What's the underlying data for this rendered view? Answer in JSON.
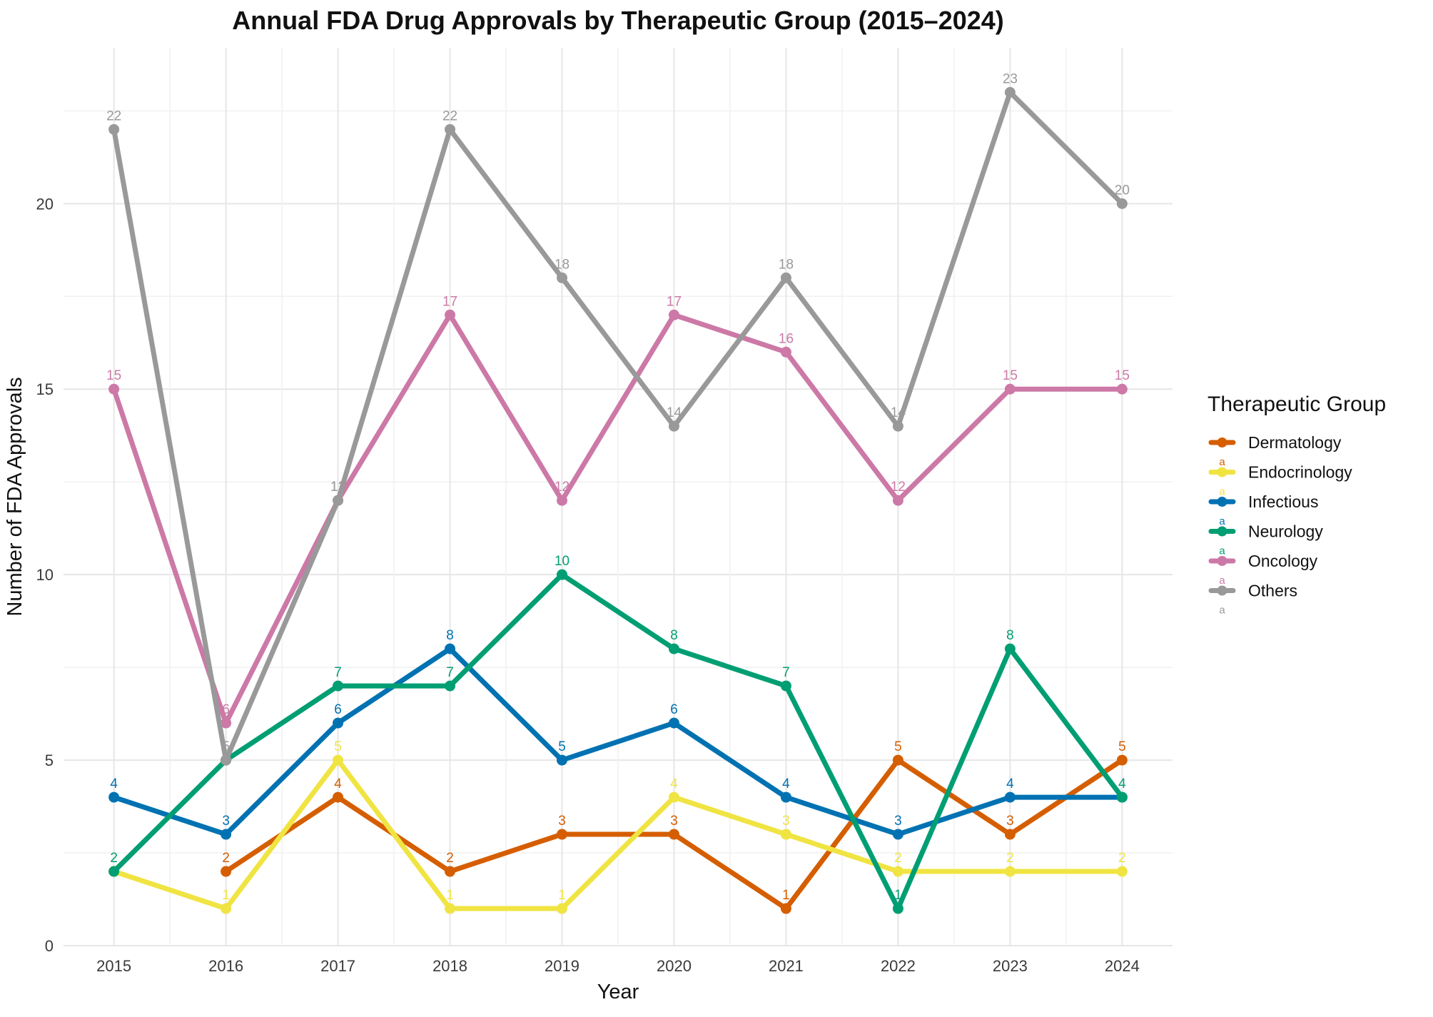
{
  "chart_data": {
    "type": "line",
    "title": "Annual FDA Drug Approvals by Therapeutic Group (2015–2024)",
    "xlabel": "Year",
    "ylabel": "Number of FDA Approvals",
    "x": [
      2015,
      2016,
      2017,
      2018,
      2019,
      2020,
      2021,
      2022,
      2023,
      2024
    ],
    "x_tick_labels": [
      "2015",
      "2016",
      "2017",
      "2018",
      "2019",
      "2020",
      "2021",
      "2022",
      "2023",
      "2024"
    ],
    "y_ticks": [
      0,
      5,
      10,
      15,
      20
    ],
    "y_tick_labels": [
      "0",
      "5",
      "10",
      "15",
      "20"
    ],
    "xlim": [
      2014.55,
      2024.45
    ],
    "ylim": [
      0,
      24.2
    ],
    "grid": true,
    "legend": {
      "title": "Therapeutic Group",
      "placement": "right",
      "key_glyph": "a"
    },
    "series": [
      {
        "name": "Dermatology",
        "color": "#D55E00",
        "values": [
          null,
          2,
          4,
          2,
          3,
          3,
          1,
          5,
          3,
          5
        ],
        "labels": [
          null,
          "2",
          "4",
          "2",
          "3",
          "3",
          "1",
          "5",
          "3",
          "5"
        ]
      },
      {
        "name": "Endocrinology",
        "color": "#F0E442",
        "values": [
          2,
          1,
          5,
          1,
          1,
          4,
          3,
          2,
          2,
          2
        ],
        "labels": [
          null,
          "1",
          "5",
          "1",
          "1",
          "4",
          "3",
          "2",
          "2",
          "2"
        ]
      },
      {
        "name": "Infectious",
        "color": "#0072B2",
        "values": [
          4,
          3,
          6,
          8,
          5,
          6,
          4,
          3,
          4,
          4
        ],
        "labels": [
          "4",
          "3",
          "6",
          "8",
          "5",
          "6",
          "4",
          "3",
          "4",
          null
        ]
      },
      {
        "name": "Neurology",
        "color": "#009E73",
        "values": [
          2,
          5,
          7,
          7,
          10,
          8,
          7,
          1,
          8,
          4
        ],
        "labels": [
          "2",
          null,
          "7",
          "7",
          "10",
          "8",
          "7",
          "1",
          "8",
          "4"
        ]
      },
      {
        "name": "Oncology",
        "color": "#CC79A7",
        "values": [
          15,
          6,
          12,
          17,
          12,
          17,
          16,
          12,
          15,
          15
        ],
        "labels": [
          "15",
          "6",
          "12",
          "17",
          "12",
          "17",
          "16",
          "12",
          "15",
          "15"
        ]
      },
      {
        "name": "Others",
        "color": "#999999",
        "values": [
          22,
          5,
          12,
          22,
          18,
          14,
          18,
          14,
          23,
          20
        ],
        "labels": [
          "22",
          "5",
          "12",
          "22",
          "18",
          "14",
          "18",
          "14",
          "23",
          "20"
        ]
      }
    ]
  }
}
